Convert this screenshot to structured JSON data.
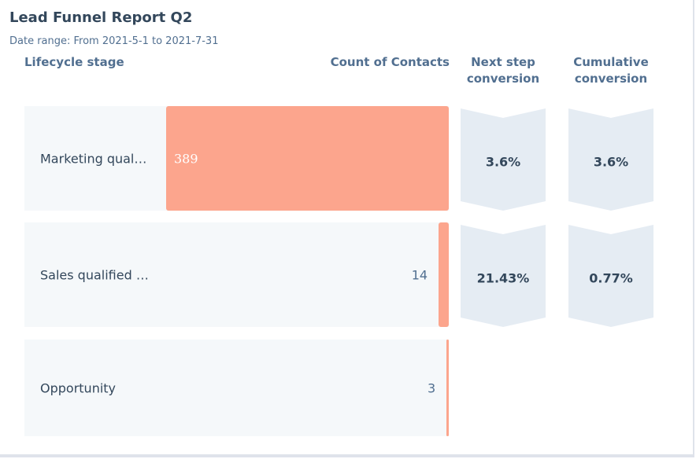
{
  "chart_data": {
    "type": "funnel",
    "title": "Lead Funnel Report Q2",
    "subtitle": "Date range: From 2021-5-1 to 2021-7-31",
    "category_header": "Lifecycle stage",
    "value_header": "Count of Contacts",
    "categories": [
      "Marketing qual…",
      "Sales qualified …",
      "Opportunity"
    ],
    "values": [
      389,
      14,
      3
    ],
    "color": "#fca58d",
    "conversions": [
      {
        "name": "Next step conversion",
        "values": [
          3.6,
          21.43
        ],
        "value_labels": [
          "3.6%",
          "21.43%"
        ]
      },
      {
        "name": "Cumulative conversion",
        "values": [
          3.6,
          0.77
        ],
        "value_labels": [
          "3.6%",
          "0.77%"
        ]
      }
    ]
  }
}
